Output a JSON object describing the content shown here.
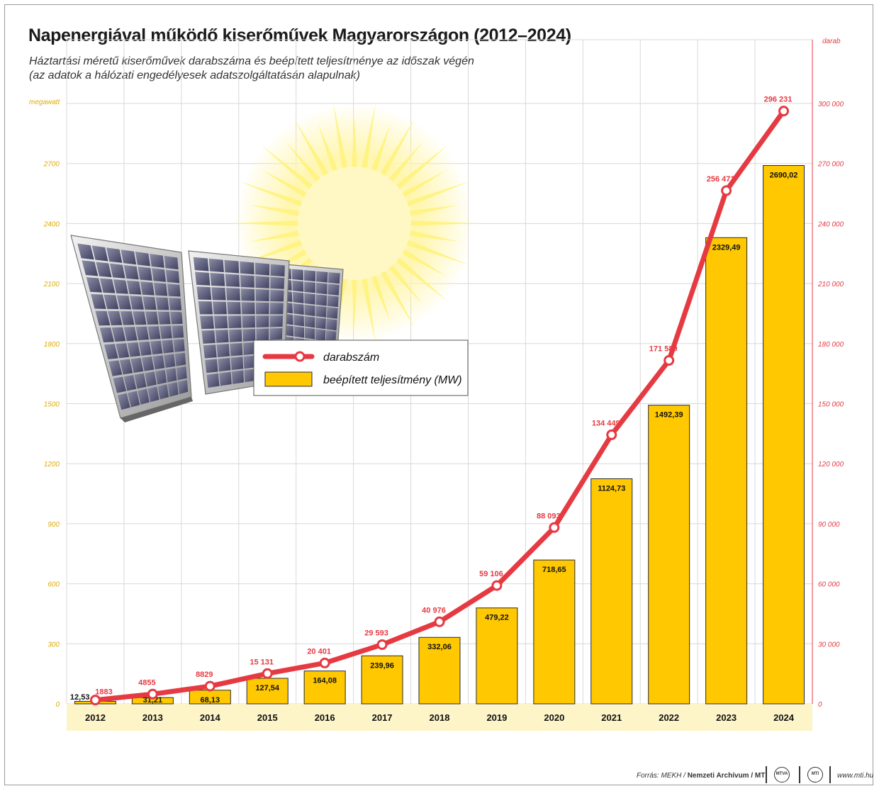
{
  "title": "Napenergiával működő kiserőművek Magyarországon (2012–2024)",
  "subtitle_line1": "Háztartási méretű kiserőművek darabszáma és beépített teljesítménye az időszak végén",
  "subtitle_line2": "(az adatok a hálózati engedélyesek adatszolgáltatásán alapulnak)",
  "left_unit": "megawatt",
  "right_unit": "darab",
  "footer": {
    "source_prefix": "Forrás: MEKH / ",
    "source_bold": "Nemzeti Archívum / MTI",
    "logo1": "MTVA",
    "logo2": "MTI",
    "url": "www.mti.hu"
  },
  "colors": {
    "bar": "#ffc800",
    "bar_stroke": "#2a2a2a",
    "line": "#e63a43",
    "left_axis": "#e0ac00",
    "right_axis": "#e63a43",
    "grid": "#d8d8d8",
    "year_band": "#fdf4c8"
  },
  "chart_data": {
    "type": "bar",
    "title": "Napenergiával működő kiserőművek Magyarországon (2012–2024)",
    "categories": [
      "2012",
      "2013",
      "2014",
      "2015",
      "2016",
      "2017",
      "2018",
      "2019",
      "2020",
      "2021",
      "2022",
      "2023",
      "2024"
    ],
    "series": [
      {
        "name": "beépített teljesítmény (MW)",
        "type": "bar",
        "axis": "left",
        "values": [
          12.53,
          31.21,
          68.13,
          127.54,
          164.08,
          239.96,
          332.06,
          479.22,
          718.65,
          1124.73,
          1492.39,
          2329.49,
          2690.02
        ],
        "labels": [
          "12,53",
          "31,21",
          "68,13",
          "127,54",
          "164,08",
          "239,96",
          "332,06",
          "479,22",
          "718,65",
          "1124,73",
          "1492,39",
          "2329,49",
          "2690,02"
        ]
      },
      {
        "name": "darabszám",
        "type": "line",
        "axis": "right",
        "values": [
          1883,
          4855,
          8829,
          15131,
          20401,
          29593,
          40976,
          59106,
          88093,
          134449,
          171589,
          256471,
          296231
        ],
        "labels": [
          "1883",
          "4855",
          "8829",
          "15 131",
          "20 401",
          "29 593",
          "40 976",
          "59 106",
          "88 093",
          "134 449",
          "171 589",
          "256 471",
          "296 231"
        ]
      }
    ],
    "left_axis": {
      "unit": "megawatt",
      "range": [
        0,
        3000
      ],
      "ticks": [
        0,
        300,
        600,
        900,
        1200,
        1500,
        1800,
        2100,
        2400,
        2700
      ],
      "tick_labels": [
        "0",
        "300",
        "600",
        "900",
        "1200",
        "1500",
        "1800",
        "2100",
        "2400",
        "2700"
      ]
    },
    "right_axis": {
      "unit": "darab",
      "range": [
        0,
        300000
      ],
      "ticks": [
        0,
        30000,
        60000,
        90000,
        120000,
        150000,
        180000,
        210000,
        240000,
        270000,
        300000
      ],
      "tick_labels": [
        "0",
        "30 000",
        "60 000",
        "90 000",
        "120 000",
        "150 000",
        "180 000",
        "210 000",
        "240 000",
        "270 000",
        "300 000"
      ]
    },
    "grid": true,
    "legend_position": "upper-left"
  }
}
